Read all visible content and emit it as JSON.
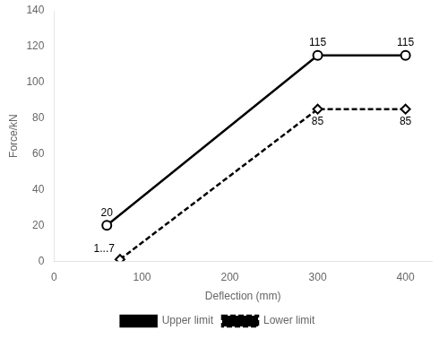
{
  "chart_data": {
    "type": "line",
    "xlabel": "Deflection (mm)",
    "ylabel": "Force/kN",
    "xlim": [
      0,
      430
    ],
    "ylim": [
      0,
      140
    ],
    "xticks": [
      0,
      100,
      200,
      300,
      400
    ],
    "yticks": [
      0,
      20,
      40,
      60,
      80,
      100,
      120,
      140
    ],
    "grid": false,
    "legend": "bottom",
    "data_labels": true,
    "series": [
      {
        "name": "Upper limit",
        "color": "#000000",
        "marker": "circle",
        "line_style": "solid",
        "x": [
          60,
          300,
          400
        ],
        "values": [
          20,
          115,
          115
        ]
      },
      {
        "name": "Lower limit",
        "color": "#000000",
        "marker": "diamond",
        "line_style": "dashed",
        "x": [
          75,
          300,
          400
        ],
        "values": [
          1,
          85,
          85
        ],
        "value_labels": [
          "1...7",
          "85",
          "85"
        ]
      }
    ]
  }
}
